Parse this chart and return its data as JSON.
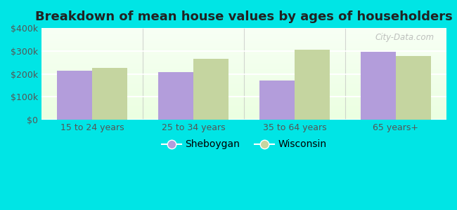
{
  "title": "Breakdown of mean house values by ages of householders",
  "categories": [
    "15 to 24 years",
    "25 to 34 years",
    "35 to 64 years",
    "65 years+"
  ],
  "sheboygan_values": [
    215000,
    207000,
    170000,
    295000
  ],
  "wisconsin_values": [
    227000,
    265000,
    305000,
    278000
  ],
  "sheboygan_color": "#b39ddb",
  "wisconsin_color": "#c5d5a0",
  "background_color": "#00e5e5",
  "ylim": [
    0,
    400000
  ],
  "ytick_labels": [
    "$0",
    "$100k",
    "$200k",
    "$300k",
    "$400k"
  ],
  "ytick_values": [
    0,
    100000,
    200000,
    300000,
    400000
  ],
  "bar_width": 0.35,
  "legend_sheboygan": "Sheboygan",
  "legend_wisconsin": "Wisconsin",
  "title_fontsize": 13,
  "tick_fontsize": 9,
  "legend_fontsize": 10,
  "watermark_text": "City-Data.com",
  "grid_color": "#ffffff",
  "separator_color": "#bbbbbb"
}
